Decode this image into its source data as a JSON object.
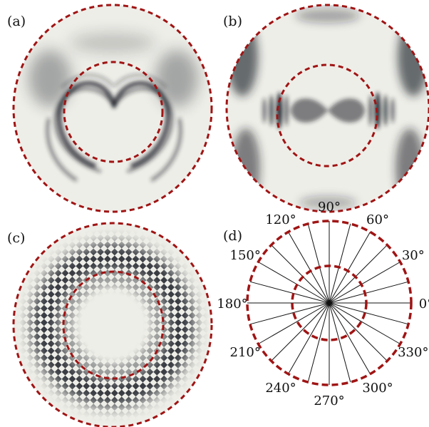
{
  "colors": {
    "dashed_circle": "#A01414",
    "field_background": "#EEEEE8",
    "field_dark": "#1E222A",
    "spoke": "#111111"
  },
  "panels": [
    {
      "id": "a",
      "label": "(a)",
      "pattern": "heart-shaped rings, dark arcs at upper half"
    },
    {
      "id": "b",
      "label": "(b)",
      "pattern": "horizontal fringes left/right, dark arcs at outer edge"
    },
    {
      "id": "c",
      "label": "(c)",
      "pattern": "ring of checkered interference around inner circle"
    },
    {
      "id": "d",
      "label": "(d)",
      "pattern": "angle reference diagram"
    }
  ],
  "angles": [
    {
      "deg": 0,
      "label": "0°"
    },
    {
      "deg": 30,
      "label": "30°"
    },
    {
      "deg": 60,
      "label": "60°"
    },
    {
      "deg": 90,
      "label": "90°"
    },
    {
      "deg": 120,
      "label": "120°"
    },
    {
      "deg": 150,
      "label": "150°"
    },
    {
      "deg": 180,
      "label": "180°"
    },
    {
      "deg": 210,
      "label": "210°"
    },
    {
      "deg": 240,
      "label": "240°"
    },
    {
      "deg": 270,
      "label": "270°"
    },
    {
      "deg": 300,
      "label": "300°"
    },
    {
      "deg": 330,
      "label": "330°"
    }
  ],
  "spoke_step_deg": 15
}
